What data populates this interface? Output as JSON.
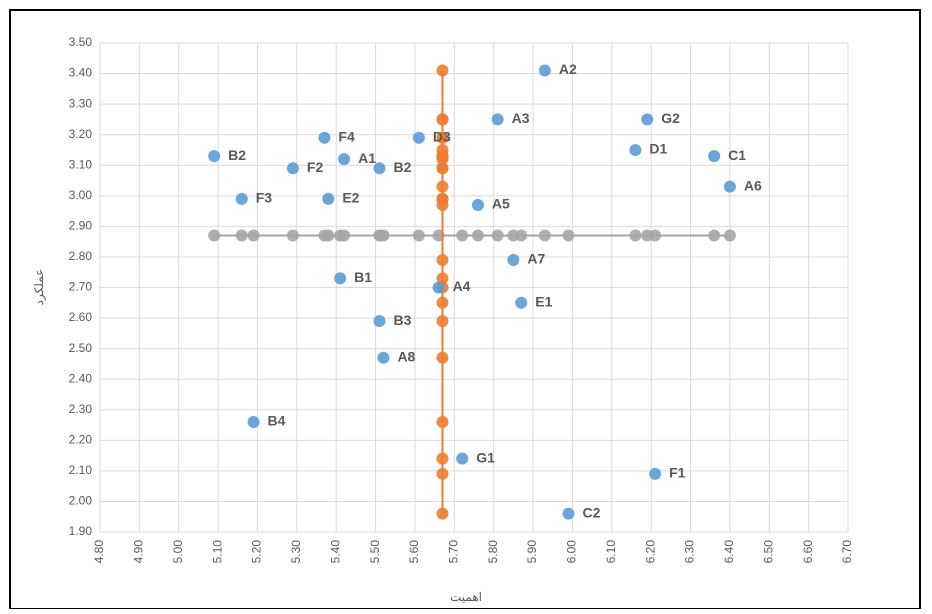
{
  "chart_data": {
    "type": "scatter",
    "x_label": "اهمیت",
    "y_label": "عملکرد",
    "xlim": [
      4.8,
      6.7
    ],
    "ylim": [
      1.9,
      3.5
    ],
    "grid": true,
    "xticks": [
      {
        "value": 4.8,
        "label": "4.80"
      },
      {
        "value": 4.9,
        "label": "4.90"
      },
      {
        "value": 5.0,
        "label": "5.00"
      },
      {
        "value": 5.1,
        "label": "5.10"
      },
      {
        "value": 5.2,
        "label": "5.20"
      },
      {
        "value": 5.3,
        "label": "5.30"
      },
      {
        "value": 5.4,
        "label": "5.40"
      },
      {
        "value": 5.5,
        "label": "5.50"
      },
      {
        "value": 5.6,
        "label": "5.60"
      },
      {
        "value": 5.7,
        "label": "5.70"
      },
      {
        "value": 5.8,
        "label": "5.80"
      },
      {
        "value": 5.9,
        "label": "5.90"
      },
      {
        "value": 6.0,
        "label": "6.00"
      },
      {
        "value": 6.1,
        "label": "6.10"
      },
      {
        "value": 6.2,
        "label": "6.20"
      },
      {
        "value": 6.3,
        "label": "6.30"
      },
      {
        "value": 6.4,
        "label": "6.40"
      },
      {
        "value": 6.5,
        "label": "6.50"
      },
      {
        "value": 6.6,
        "label": "6.60"
      },
      {
        "value": 6.7,
        "label": "6.70"
      }
    ],
    "yticks": [
      {
        "value": 1.9,
        "label": "1.90"
      },
      {
        "value": 2.0,
        "label": "2.00"
      },
      {
        "value": 2.1,
        "label": "2.10"
      },
      {
        "value": 2.2,
        "label": "2.20"
      },
      {
        "value": 2.3,
        "label": "2.30"
      },
      {
        "value": 2.4,
        "label": "2.40"
      },
      {
        "value": 2.5,
        "label": "2.50"
      },
      {
        "value": 2.6,
        "label": "2.60"
      },
      {
        "value": 2.7,
        "label": "2.70"
      },
      {
        "value": 2.8,
        "label": "2.80"
      },
      {
        "value": 2.9,
        "label": "2.90"
      },
      {
        "value": 3.0,
        "label": "3.00"
      },
      {
        "value": 3.1,
        "label": "3.10"
      },
      {
        "value": 3.2,
        "label": "3.20"
      },
      {
        "value": 3.3,
        "label": "3.30"
      },
      {
        "value": 3.4,
        "label": "3.40"
      },
      {
        "value": 3.5,
        "label": "3.50"
      }
    ],
    "series": [
      {
        "color": "#a5a5a5",
        "line": true,
        "x": [
          5.09,
          5.16,
          5.19,
          5.29,
          5.37,
          5.38,
          5.41,
          5.42,
          5.51,
          5.51,
          5.52,
          5.61,
          5.66,
          5.72,
          5.76,
          5.81,
          5.85,
          5.87,
          5.93,
          5.99,
          6.16,
          6.19,
          6.21,
          6.36,
          6.4
        ],
        "values": [
          2.87,
          2.87,
          2.87,
          2.87,
          2.87,
          2.87,
          2.87,
          2.87,
          2.87,
          2.87,
          2.87,
          2.87,
          2.87,
          2.87,
          2.87,
          2.87,
          2.87,
          2.87,
          2.87,
          2.87,
          2.87,
          2.87,
          2.87,
          2.87,
          2.87
        ]
      },
      {
        "color": "#ed7d31",
        "line": true,
        "x": [
          5.67,
          5.67,
          5.67,
          5.67,
          5.67,
          5.67,
          5.67,
          5.67,
          5.67,
          5.67,
          5.67,
          5.67,
          5.67,
          5.67,
          5.67,
          5.67,
          5.67,
          5.67,
          5.67,
          5.67,
          5.67,
          5.67,
          5.67,
          5.67,
          5.67
        ],
        "values": [
          1.96,
          2.09,
          2.14,
          2.26,
          2.47,
          2.59,
          2.65,
          2.7,
          2.73,
          2.79,
          2.97,
          2.99,
          2.99,
          3.03,
          3.09,
          3.09,
          3.12,
          3.13,
          3.13,
          3.15,
          3.19,
          3.19,
          3.25,
          3.25,
          3.41
        ]
      },
      {
        "color": "#5b9bd5",
        "line": false,
        "x": [
          5.93,
          5.81,
          6.19,
          5.37,
          5.61,
          5.09,
          5.42,
          6.16,
          6.36,
          5.29,
          5.51,
          5.16,
          5.38,
          6.4,
          5.76,
          5.85,
          5.41,
          5.66,
          5.87,
          5.51,
          5.52,
          5.19,
          5.72,
          6.21,
          5.99
        ],
        "values": [
          3.41,
          3.25,
          3.25,
          3.19,
          3.19,
          3.13,
          3.12,
          3.15,
          3.13,
          3.09,
          3.09,
          2.99,
          2.99,
          3.03,
          2.97,
          2.79,
          2.73,
          2.7,
          2.65,
          2.59,
          2.47,
          2.26,
          2.14,
          2.09,
          1.96
        ],
        "labels": [
          "A2",
          "A3",
          "G2",
          "F4",
          "D3",
          "B2",
          "A1",
          "D1",
          "C1",
          "F2",
          "B2",
          "F3",
          "E2",
          "A6",
          "A5",
          "A7",
          "B1",
          "A4",
          "E1",
          "B3",
          "A8",
          "B4",
          "G1",
          "F1",
          "C2"
        ]
      }
    ]
  }
}
